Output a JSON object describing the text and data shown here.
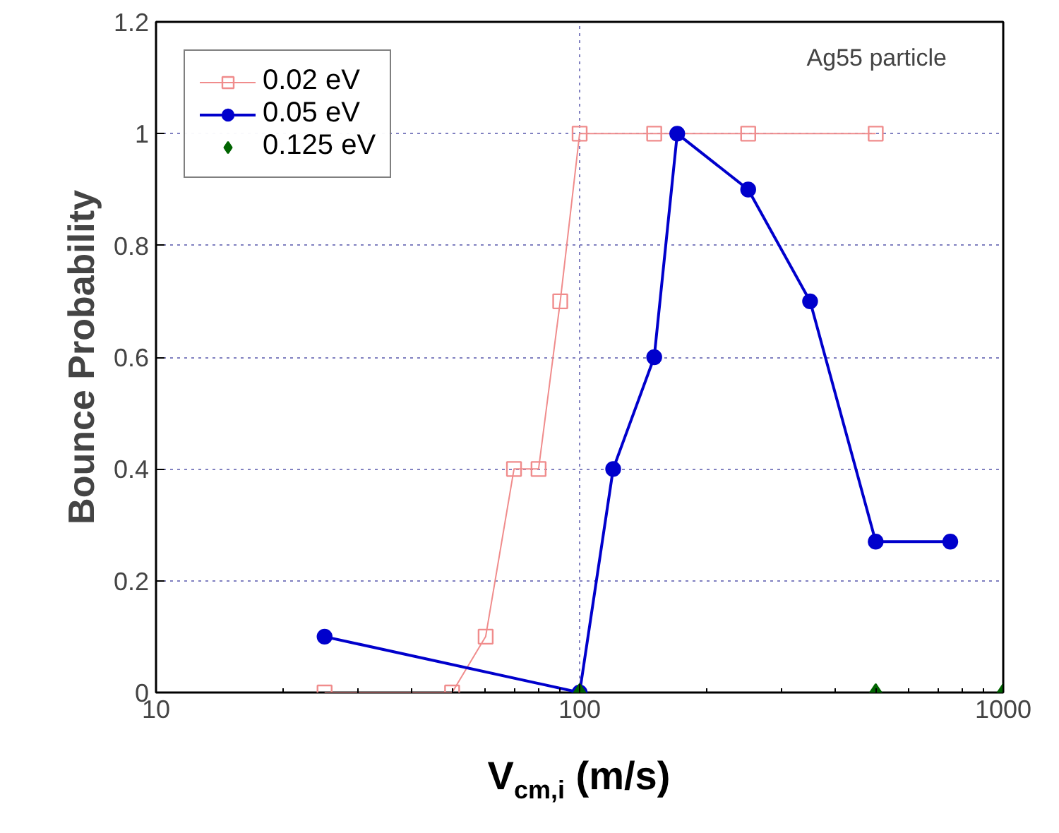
{
  "chart_data": {
    "type": "line",
    "xlabel": "V$_{cm,i}$ (m/s)",
    "ylabel": "Bounce Probability",
    "log": "x",
    "xlim": [
      10,
      1000
    ],
    "xticks": [
      10,
      100,
      1000
    ],
    "ylim": [
      0,
      1.2
    ],
    "yticks": [
      0,
      0.2,
      0.4,
      0.6,
      0.8,
      1,
      1.2
    ],
    "grid": true,
    "legend": "top left",
    "annotations": [
      "Ag55 particle"
    ],
    "series": [
      {
        "name": "0.02 eV",
        "color": "#f08c8c",
        "marker": "square",
        "x": [
          25,
          50,
          60,
          70,
          80,
          90,
          100,
          150,
          250,
          500
        ],
        "values": [
          0,
          0,
          0.1,
          0.4,
          0.4,
          0.7,
          1,
          1,
          1,
          1
        ]
      },
      {
        "name": "0.05 eV",
        "color": "#0000cc",
        "marker": "circle",
        "x": [
          25,
          100,
          120,
          150,
          170,
          250,
          350,
          500,
          750
        ],
        "values": [
          0.1,
          0,
          0.4,
          0.6,
          1,
          0.9,
          0.7,
          0.27,
          0.27
        ]
      },
      {
        "name": "0.125 eV",
        "type": "scatter",
        "color": "#006400",
        "marker": "diamond",
        "x": [
          100,
          500,
          1000
        ],
        "values": [
          0,
          0,
          0
        ]
      }
    ]
  }
}
